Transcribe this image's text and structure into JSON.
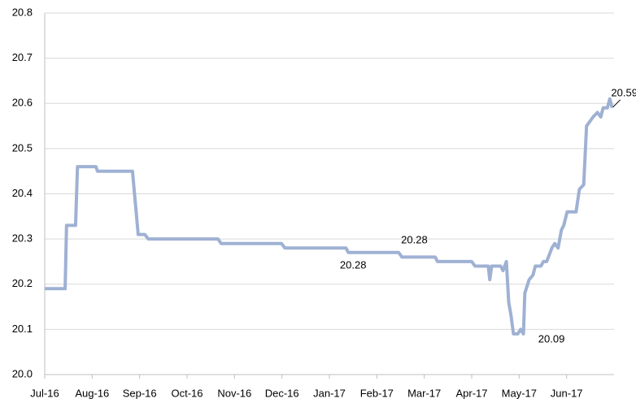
{
  "chart_data": {
    "type": "line",
    "xlim": [
      0,
      12
    ],
    "xticks": [
      {
        "value": 0,
        "label": "Jul-16"
      },
      {
        "value": 1,
        "label": "Aug-16"
      },
      {
        "value": 2,
        "label": "Sep-16"
      },
      {
        "value": 3,
        "label": "Oct-16"
      },
      {
        "value": 4,
        "label": "Nov-16"
      },
      {
        "value": 5,
        "label": "Dec-16"
      },
      {
        "value": 6,
        "label": "Jan-17"
      },
      {
        "value": 7,
        "label": "Feb-17"
      },
      {
        "value": 8,
        "label": "Mar-17"
      },
      {
        "value": 9,
        "label": "Apr-17"
      },
      {
        "value": 10,
        "label": "May-17"
      },
      {
        "value": 11,
        "label": "Jun-17"
      }
    ],
    "ylim": [
      20.0,
      20.8
    ],
    "yticks": [
      {
        "value": 20.0,
        "label": "20.0"
      },
      {
        "value": 20.1,
        "label": "20.1"
      },
      {
        "value": 20.2,
        "label": "20.2"
      },
      {
        "value": 20.3,
        "label": "20.3"
      },
      {
        "value": 20.4,
        "label": "20.4"
      },
      {
        "value": 20.5,
        "label": "20.5"
      },
      {
        "value": 20.6,
        "label": "20.6"
      },
      {
        "value": 20.7,
        "label": "20.7"
      },
      {
        "value": 20.8,
        "label": "20.8"
      }
    ],
    "grid": true,
    "series": [
      {
        "color": "#9fb1d3",
        "x": [
          0,
          0.43,
          0.46,
          0.65,
          0.69,
          1.08,
          1.11,
          1.85,
          1.97,
          2.11,
          2.18,
          3.65,
          3.72,
          4.99,
          5.06,
          6.35,
          6.4,
          7.46,
          7.53,
          8.23,
          8.28,
          9.0,
          9.07,
          9.35,
          9.38,
          9.42,
          9.61,
          9.66,
          9.73,
          9.78,
          9.83,
          9.88,
          9.97,
          10.03,
          10.09,
          10.12,
          10.21,
          10.29,
          10.34,
          10.46,
          10.51,
          10.58,
          10.69,
          10.75,
          10.82,
          10.89,
          10.94,
          11.01,
          11.2,
          11.27,
          11.36,
          11.42,
          11.49,
          11.56,
          11.65,
          11.72,
          11.77,
          11.86,
          11.91,
          11.96
        ],
        "values": [
          20.19,
          20.19,
          20.33,
          20.33,
          20.46,
          20.46,
          20.45,
          20.45,
          20.31,
          20.31,
          20.3,
          20.3,
          20.29,
          20.29,
          20.28,
          20.28,
          20.27,
          20.27,
          20.26,
          20.26,
          20.25,
          20.25,
          20.24,
          20.24,
          20.21,
          20.24,
          20.24,
          20.23,
          20.25,
          20.16,
          20.13,
          20.09,
          20.09,
          20.1,
          20.09,
          20.18,
          20.21,
          20.22,
          20.24,
          20.24,
          20.25,
          20.25,
          20.28,
          20.29,
          20.28,
          20.32,
          20.33,
          20.36,
          20.36,
          20.41,
          20.42,
          20.55,
          20.56,
          20.57,
          20.58,
          20.57,
          20.59,
          20.59,
          20.61,
          20.59
        ]
      }
    ],
    "annotations": [
      {
        "label": "20.28",
        "x": 6.35,
        "y": 20.28
      },
      {
        "label": "20.28",
        "x": 5.9,
        "y": 20.28
      },
      {
        "label": "20.09",
        "x": 10.03,
        "y": 20.09
      },
      {
        "label": "20.59",
        "x": 11.96,
        "y": 20.59
      }
    ]
  }
}
